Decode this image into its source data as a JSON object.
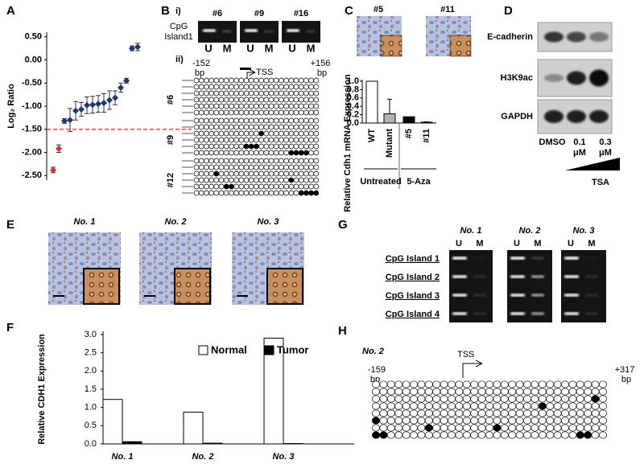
{
  "panel_labels": [
    "A",
    "B",
    "C",
    "D",
    "E",
    "F",
    "G",
    "H"
  ],
  "chart_data": [
    {
      "type": "scatter",
      "y_label": "Log₂ Ratio",
      "categories": [
        null,
        null,
        null,
        null,
        null,
        null,
        null,
        null,
        null,
        null,
        null,
        null,
        null,
        null,
        null,
        null
      ],
      "series": [
        {
          "color": "#e8262d",
          "values": [
            -2.38,
            -1.92,
            null,
            null,
            null,
            null,
            null,
            null,
            null,
            null,
            null,
            null,
            null,
            null,
            null,
            null
          ],
          "errors": [
            0.06,
            0.08,
            null,
            null,
            null,
            null,
            null,
            null,
            null,
            null,
            null,
            null,
            null,
            null,
            null,
            null
          ]
        },
        {
          "color": "#1b3a6b",
          "values": [
            null,
            null,
            -1.32,
            -1.3,
            -1.1,
            -1.07,
            -0.98,
            -0.97,
            -0.95,
            -0.93,
            -0.87,
            -0.82,
            -0.6,
            -0.45,
            0.25,
            0.28
          ],
          "errors": [
            null,
            null,
            0.05,
            0.25,
            0.2,
            0.15,
            0.18,
            0.18,
            0.18,
            0.2,
            0.2,
            0.15,
            0.1,
            0.05,
            0.05,
            0.08
          ]
        }
      ],
      "threshold": -1.5,
      "threshold_color": "#e05050",
      "ylim": [
        -2.6,
        0.6
      ],
      "yticks": [
        {
          "value": 0.5,
          "label": "0.50"
        },
        {
          "value": 0,
          "label": "0.00"
        },
        {
          "value": -0.5,
          "label": "-0.50"
        },
        {
          "value": -1,
          "label": "-1.00"
        },
        {
          "value": -1.5,
          "label": "-1.50"
        },
        {
          "value": -2,
          "label": "-2.00"
        },
        {
          "value": -2.5,
          "label": "-2.50"
        }
      ]
    },
    {
      "type": "bar",
      "y_label": "Relative Cdh1 mRNA Expression",
      "categories": [
        "WT",
        "Mutant",
        "#5",
        "#11"
      ],
      "values": [
        1.0,
        0.22,
        0.15,
        0.02
      ],
      "errors": [
        null,
        0.35,
        null,
        0.01
      ],
      "colors": [
        "#ffffff",
        "#b3b3b3",
        "#000000",
        "#000000"
      ],
      "group_labels": [
        "Untreated",
        "5-Aza"
      ],
      "ylim": [
        0,
        1.0
      ],
      "yticks": [
        {
          "value": 0,
          "label": "0.0"
        },
        0.2,
        0.4,
        0.6,
        0.8,
        {
          "value": 1,
          "label": "1.0"
        }
      ]
    },
    {
      "type": "grouped_bar",
      "y_label": "Relative CDH1 Expression",
      "categories": [
        "No. 1",
        "No. 2",
        "No. 3"
      ],
      "series": [
        {
          "name": "Normal",
          "color": "#ffffff",
          "values": [
            1.22,
            0.87,
            2.9
          ]
        },
        {
          "name": "Tumor",
          "color": "#000000",
          "values": [
            0.06,
            0.02,
            0.01
          ]
        }
      ],
      "ylim": [
        0,
        3.0
      ],
      "yticks": [
        {
          "value": 0,
          "label": "0.0"
        },
        0.5,
        {
          "value": 1,
          "label": "1.0"
        },
        1.5,
        {
          "value": 2,
          "label": "2.0"
        },
        2.5,
        {
          "value": 3,
          "label": "3.0"
        }
      ]
    }
  ],
  "panel_b": {
    "section_i": "i)",
    "section_ii": "ii)",
    "gel_label": [
      "CpG",
      "Island1"
    ],
    "samples": [
      "#6",
      "#9",
      "#16"
    ],
    "lanes": [
      "U",
      "M"
    ],
    "start": [
      "-152",
      "bp"
    ],
    "end": [
      "+156",
      "bp"
    ],
    "tss": "TSS",
    "rows": [
      "#6",
      "#9",
      "#12"
    ]
  },
  "panel_c": {
    "images": [
      "#5",
      "#11"
    ]
  },
  "panel_d": {
    "proteins": [
      "E-cadherin",
      "H3K9ac",
      "GAPDH"
    ],
    "doses": [
      [
        "DMSO"
      ],
      [
        "0.1",
        "μM"
      ],
      [
        "0.3",
        "μM"
      ]
    ],
    "treatment": "TSA"
  },
  "panel_e": {
    "samples": [
      "No. 1",
      "No. 2",
      "No. 3"
    ]
  },
  "panel_g": {
    "samples": [
      "No. 1",
      "No. 2",
      "No. 3"
    ],
    "lanes": [
      "U",
      "M"
    ],
    "rows": [
      "CpG Island 1",
      "CpG Island 2",
      "CpG Island 3",
      "CpG Island 4"
    ]
  },
  "panel_h": {
    "sample": "No. 2",
    "start": [
      "-159",
      "bp"
    ],
    "tss": "TSS",
    "end": [
      "+317",
      "bp"
    ]
  }
}
